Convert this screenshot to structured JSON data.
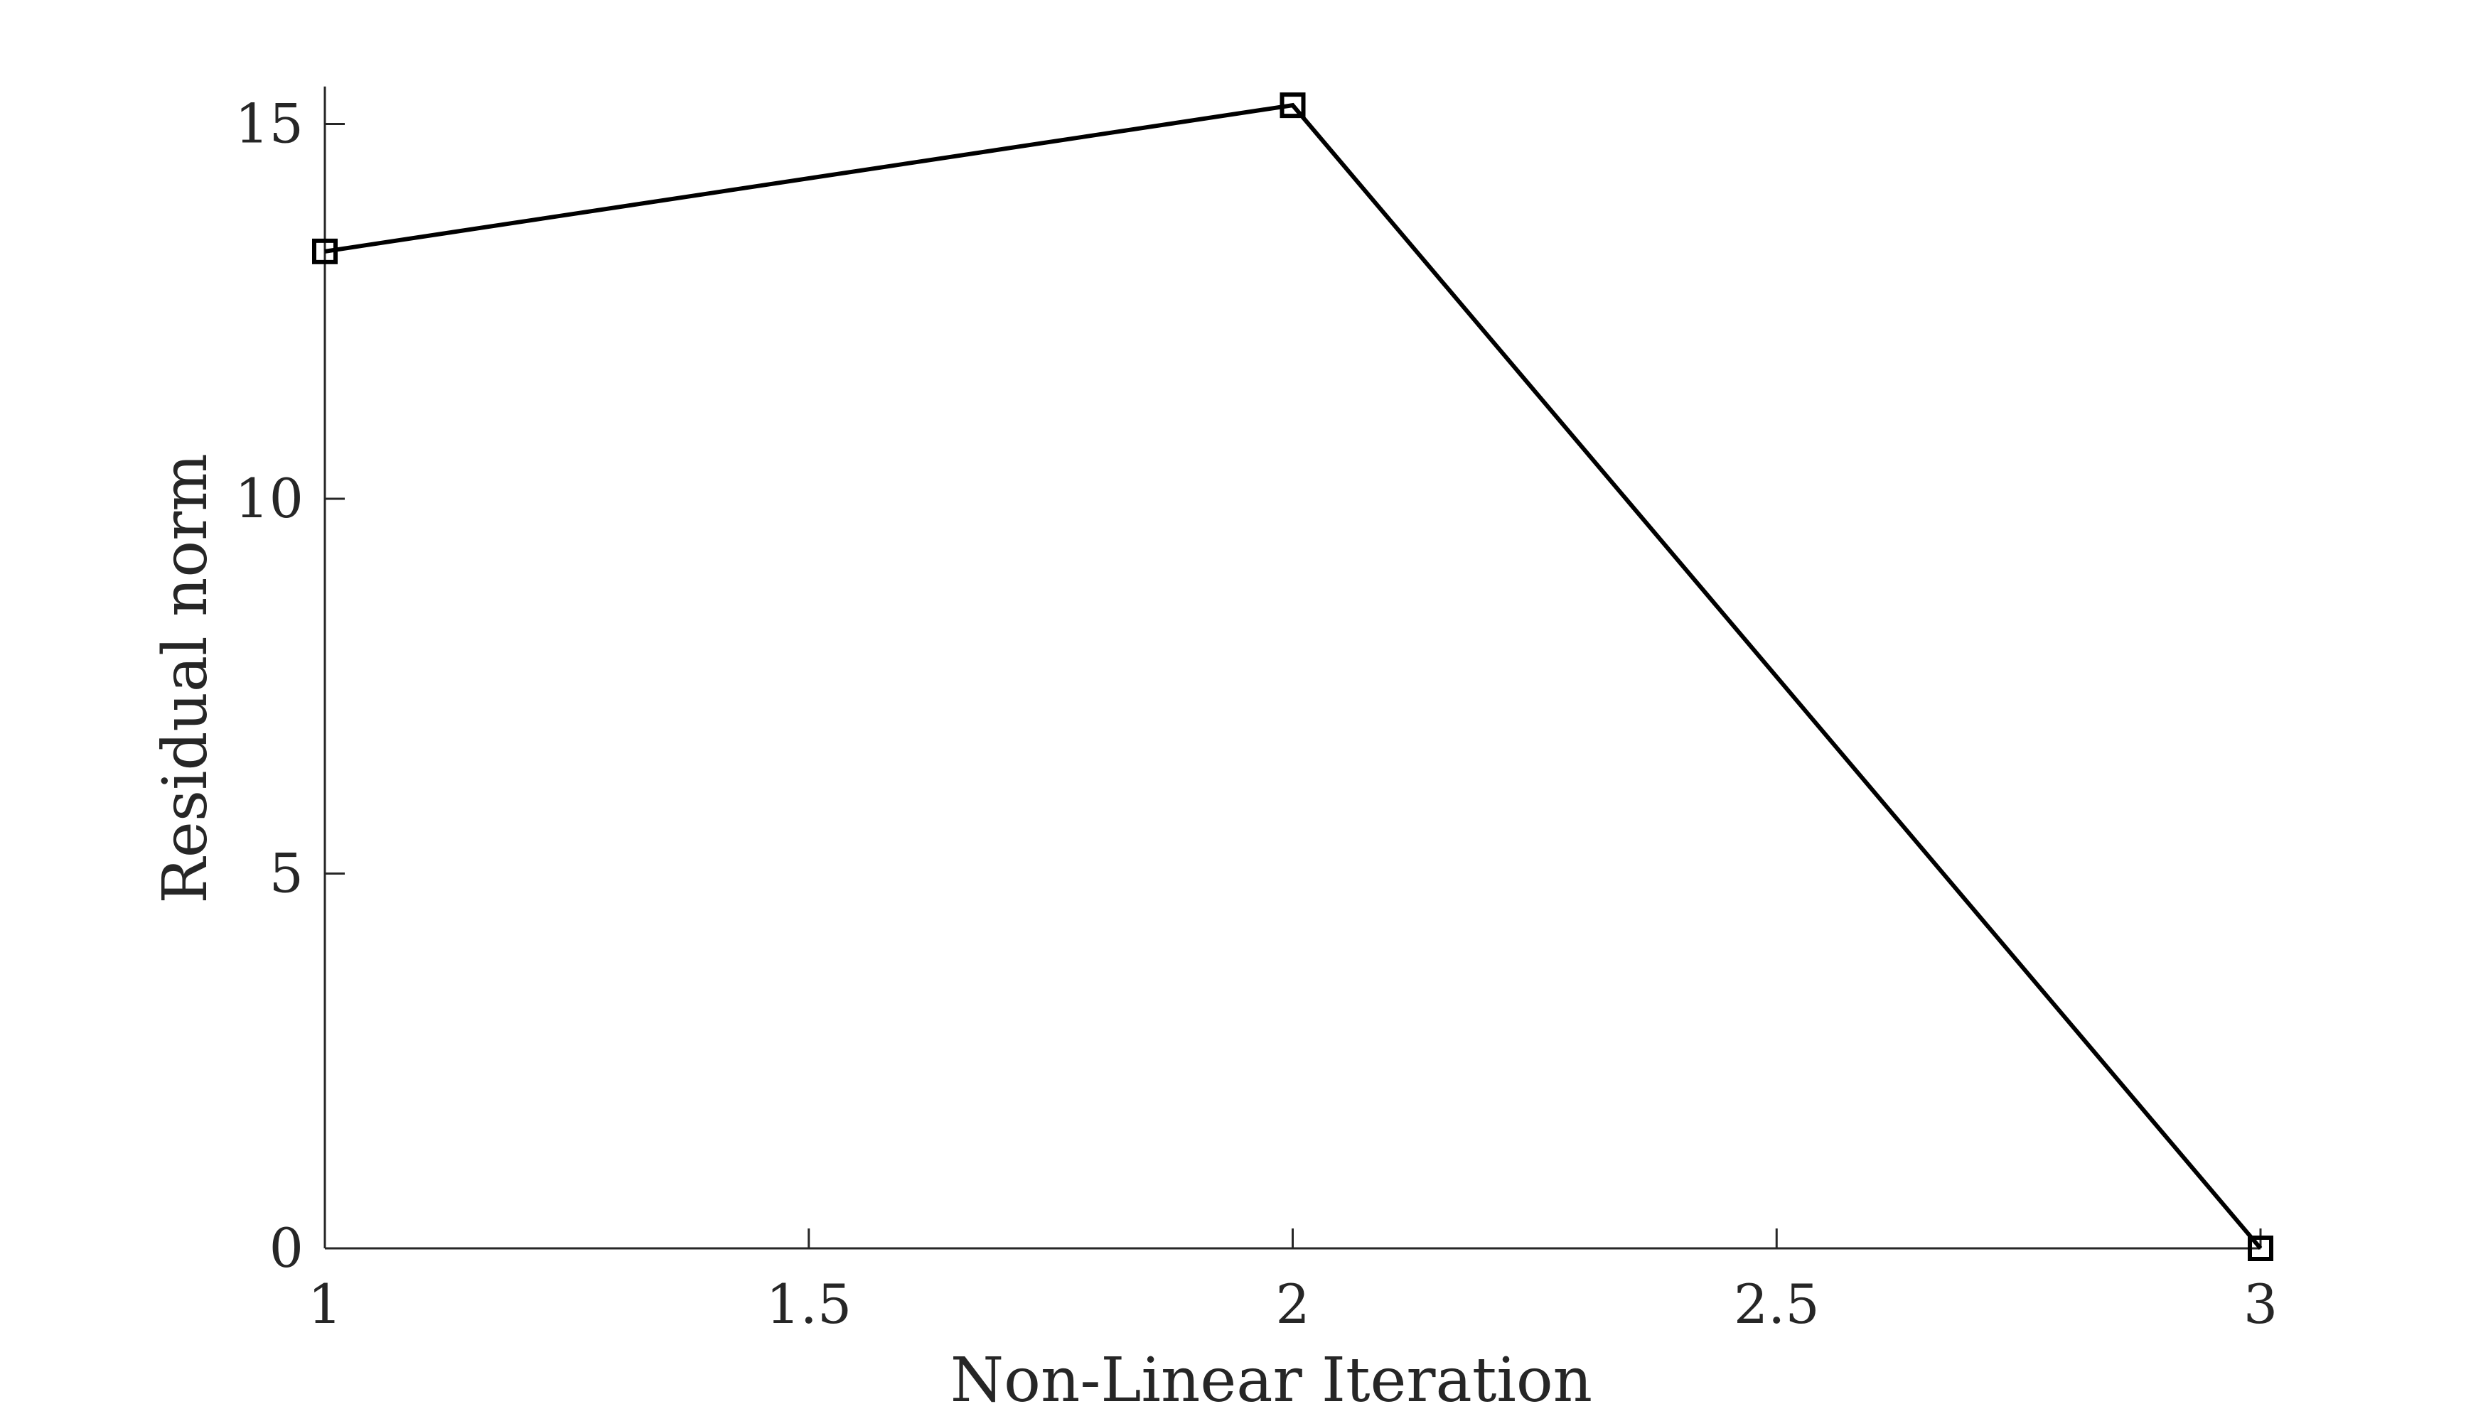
{
  "chart_data": {
    "type": "line",
    "xlabel": "Non-Linear Iteration",
    "ylabel": "Residual norm",
    "xlim": [
      1,
      3
    ],
    "ylim": [
      0,
      15.5
    ],
    "xticks": [
      1,
      1.5,
      2,
      2.5,
      3
    ],
    "xtick_labels": [
      "1",
      "1.5",
      "2",
      "2.5",
      "3"
    ],
    "yticks": [
      0,
      5,
      10,
      15
    ],
    "ytick_labels": [
      "0",
      "5",
      "10",
      "15"
    ],
    "grid": false,
    "series": [
      {
        "x": [
          1,
          2,
          3
        ],
        "y": [
          13.3,
          15.25,
          0
        ],
        "color": "#000000",
        "marker": "square"
      }
    ]
  }
}
